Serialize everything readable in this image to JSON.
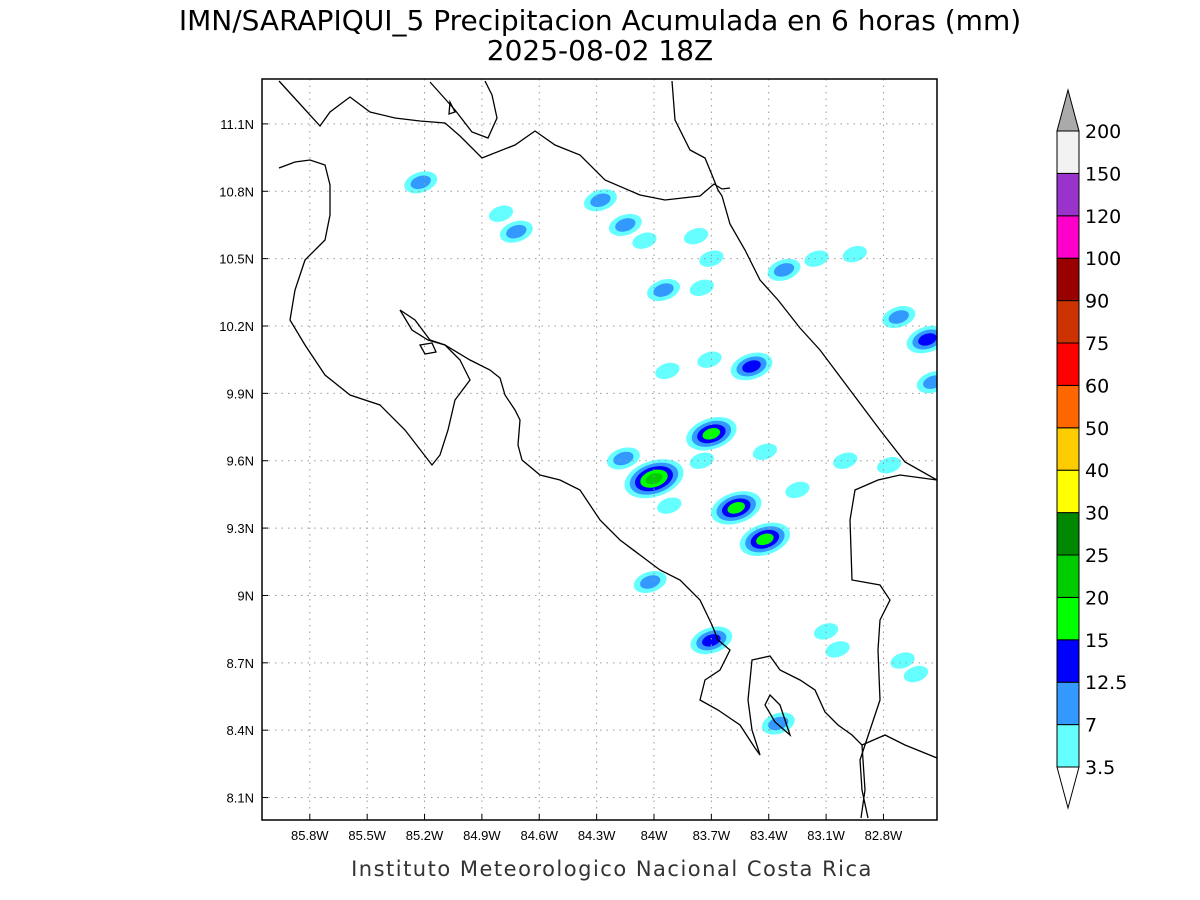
{
  "title": {
    "line1": "IMN/SARAPIQUI_5 Precipitacion Acumulada en 6 horas (mm)",
    "line2": "2025-08-02 18Z"
  },
  "footer": "Instituto Meteorologico Nacional Costa Rica",
  "map": {
    "lon_range": [
      -86.05,
      -82.52
    ],
    "lat_range": [
      8.0,
      11.3
    ],
    "lon_ticks": [
      {
        "value": -85.8,
        "label": "85.8W"
      },
      {
        "value": -85.5,
        "label": "85.5W"
      },
      {
        "value": -85.2,
        "label": "85.2W"
      },
      {
        "value": -84.9,
        "label": "84.9W"
      },
      {
        "value": -84.6,
        "label": "84.6W"
      },
      {
        "value": -84.3,
        "label": "84.3W"
      },
      {
        "value": -84.0,
        "label": "84W"
      },
      {
        "value": -83.7,
        "label": "83.7W"
      },
      {
        "value": -83.4,
        "label": "83.4W"
      },
      {
        "value": -83.1,
        "label": "83.1W"
      },
      {
        "value": -82.8,
        "label": "82.8W"
      }
    ],
    "lat_ticks": [
      {
        "value": 11.1,
        "label": "11.1N"
      },
      {
        "value": 10.8,
        "label": "10.8N"
      },
      {
        "value": 10.5,
        "label": "10.5N"
      },
      {
        "value": 10.2,
        "label": "10.2N"
      },
      {
        "value": 9.9,
        "label": "9.9N"
      },
      {
        "value": 9.6,
        "label": "9.6N"
      },
      {
        "value": 9.3,
        "label": "9.3N"
      },
      {
        "value": 9.0,
        "label": "9N"
      },
      {
        "value": 8.7,
        "label": "8.7N"
      },
      {
        "value": 8.4,
        "label": "8.4N"
      },
      {
        "value": 8.1,
        "label": "8.1N"
      }
    ],
    "grid": "dotted"
  },
  "colorbar": {
    "levels": [
      "3.5",
      "7",
      "12.5",
      "15",
      "20",
      "25",
      "30",
      "40",
      "50",
      "60",
      "75",
      "90",
      "100",
      "120",
      "150",
      "200"
    ],
    "colors": [
      "#66ffff",
      "#3399ff",
      "#0000ff",
      "#00ff00",
      "#00cc00",
      "#008800",
      "#ffff00",
      "#ffcc00",
      "#ff6600",
      "#ff0000",
      "#cc3300",
      "#990000",
      "#ff00cc",
      "#9933cc",
      "#f2f2f2"
    ],
    "below_color": "#ffffff",
    "above_color": "#aaaaaa"
  },
  "precip_cells": [
    {
      "lon": -85.22,
      "lat": 10.84,
      "level": 2
    },
    {
      "lon": -84.72,
      "lat": 10.62,
      "level": 2
    },
    {
      "lon": -84.8,
      "lat": 10.7,
      "level": 1
    },
    {
      "lon": -84.28,
      "lat": 10.76,
      "level": 2
    },
    {
      "lon": -84.15,
      "lat": 10.65,
      "level": 2
    },
    {
      "lon": -84.05,
      "lat": 10.58,
      "level": 1
    },
    {
      "lon": -83.78,
      "lat": 10.6,
      "level": 1
    },
    {
      "lon": -83.7,
      "lat": 10.5,
      "level": 1
    },
    {
      "lon": -83.95,
      "lat": 10.36,
      "level": 2
    },
    {
      "lon": -83.75,
      "lat": 10.37,
      "level": 1
    },
    {
      "lon": -83.32,
      "lat": 10.45,
      "level": 2
    },
    {
      "lon": -83.15,
      "lat": 10.5,
      "level": 1
    },
    {
      "lon": -82.95,
      "lat": 10.52,
      "level": 1
    },
    {
      "lon": -82.72,
      "lat": 10.24,
      "level": 2
    },
    {
      "lon": -82.57,
      "lat": 10.14,
      "level": 3
    },
    {
      "lon": -82.54,
      "lat": 9.95,
      "level": 2
    },
    {
      "lon": -83.49,
      "lat": 10.02,
      "level": 3
    },
    {
      "lon": -83.93,
      "lat": 10.0,
      "level": 1
    },
    {
      "lon": -83.71,
      "lat": 10.05,
      "level": 1
    },
    {
      "lon": -83.7,
      "lat": 9.72,
      "level": 4
    },
    {
      "lon": -83.42,
      "lat": 9.64,
      "level": 1
    },
    {
      "lon": -83.75,
      "lat": 9.6,
      "level": 1
    },
    {
      "lon": -84.16,
      "lat": 9.61,
      "level": 2
    },
    {
      "lon": -84.0,
      "lat": 9.52,
      "level": 5
    },
    {
      "lon": -83.92,
      "lat": 9.4,
      "level": 1
    },
    {
      "lon": -83.57,
      "lat": 9.39,
      "level": 4
    },
    {
      "lon": -83.42,
      "lat": 9.25,
      "level": 4
    },
    {
      "lon": -83.25,
      "lat": 9.47,
      "level": 1
    },
    {
      "lon": -84.02,
      "lat": 9.06,
      "level": 2
    },
    {
      "lon": -83.7,
      "lat": 8.8,
      "level": 3
    },
    {
      "lon": -83.35,
      "lat": 8.43,
      "level": 2
    },
    {
      "lon": -83.1,
      "lat": 8.84,
      "level": 1
    },
    {
      "lon": -82.63,
      "lat": 8.65,
      "level": 1
    },
    {
      "lon": -82.7,
      "lat": 8.71,
      "level": 1
    },
    {
      "lon": -83.04,
      "lat": 8.76,
      "level": 1
    },
    {
      "lon": -82.77,
      "lat": 9.58,
      "level": 1
    },
    {
      "lon": -83.0,
      "lat": 9.6,
      "level": 1
    }
  ]
}
